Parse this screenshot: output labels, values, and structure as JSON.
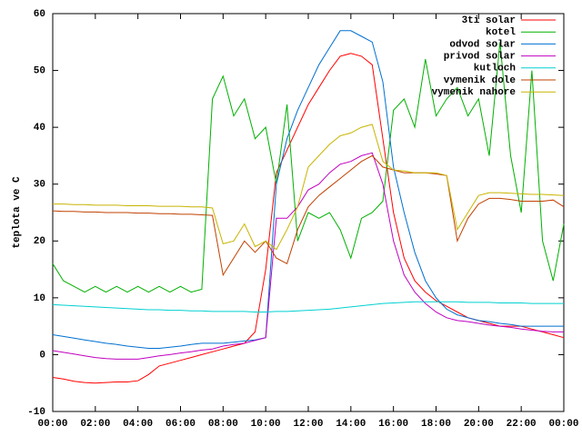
{
  "chart_data": {
    "type": "line",
    "ylabel": "teplota ve C",
    "x": [
      0,
      0.5,
      1,
      1.5,
      2,
      2.5,
      3,
      3.5,
      4,
      4.5,
      5,
      5.5,
      6,
      6.5,
      7,
      7.5,
      8,
      8.5,
      9,
      9.5,
      10,
      10.5,
      11,
      11.5,
      12,
      12.5,
      13,
      13.5,
      14,
      14.5,
      15,
      15.5,
      16,
      16.5,
      17,
      17.5,
      18,
      18.5,
      19,
      19.5,
      20,
      20.5,
      21,
      21.5,
      22,
      22.5,
      23,
      23.5,
      24
    ],
    "xlim": [
      0,
      24
    ],
    "xticks": [
      {
        "value": 0,
        "label": "00:00"
      },
      {
        "value": 2,
        "label": "02:00"
      },
      {
        "value": 4,
        "label": "04:00"
      },
      {
        "value": 6,
        "label": "06:00"
      },
      {
        "value": 8,
        "label": "08:00"
      },
      {
        "value": 10,
        "label": "10:00"
      },
      {
        "value": 12,
        "label": "12:00"
      },
      {
        "value": 14,
        "label": "14:00"
      },
      {
        "value": 16,
        "label": "16:00"
      },
      {
        "value": 18,
        "label": "18:00"
      },
      {
        "value": 20,
        "label": "20:00"
      },
      {
        "value": 22,
        "label": "22:00"
      },
      {
        "value": 24,
        "label": "00:00"
      }
    ],
    "ylim": [
      -10,
      60
    ],
    "yticks": [
      -10,
      0,
      10,
      20,
      30,
      40,
      50,
      60
    ],
    "legend": "top-right",
    "series": [
      {
        "name": "3ti solar",
        "color": "#ff0000",
        "values": [
          -4,
          -4.3,
          -4.7,
          -4.9,
          -5,
          -4.9,
          -4.8,
          -4.8,
          -4.6,
          -3.5,
          -2,
          -1.5,
          -1,
          -0.5,
          0,
          0.5,
          1,
          1.5,
          2,
          4,
          15,
          32,
          36,
          40,
          44,
          47,
          50,
          52.5,
          53,
          52.5,
          51,
          38,
          25,
          17,
          13,
          11,
          9.5,
          8.5,
          7.5,
          6.5,
          6,
          5.5,
          5,
          5,
          5,
          4.5,
          4,
          3.5,
          3
        ]
      },
      {
        "name": "kotel",
        "color": "#00b000",
        "values": [
          16,
          13,
          12,
          11,
          12,
          11,
          12,
          11,
          12,
          11,
          12,
          11,
          12,
          11,
          11.5,
          45,
          49,
          42,
          45,
          38,
          40,
          30,
          44,
          20,
          25,
          24,
          25,
          22,
          17,
          24,
          25,
          27,
          43,
          45,
          40,
          52,
          42,
          45,
          47,
          42,
          45,
          35,
          55,
          35,
          25,
          50,
          20,
          13,
          23
        ]
      },
      {
        "name": "odvod solar",
        "color": "#0070d0",
        "values": [
          3.5,
          3.2,
          2.9,
          2.6,
          2.3,
          2,
          1.8,
          1.5,
          1.3,
          1.1,
          1.1,
          1.3,
          1.5,
          1.8,
          2,
          2,
          2,
          2.2,
          2.4,
          2.6,
          3,
          30,
          38,
          43,
          47,
          51,
          54,
          57,
          57,
          56,
          55,
          48,
          33,
          25,
          18,
          13,
          10,
          8,
          7,
          6.5,
          6,
          5.8,
          5.5,
          5.3,
          5,
          5,
          5,
          5,
          5
        ]
      },
      {
        "name": "privod solar",
        "color": "#c000c0",
        "values": [
          0.7,
          0.4,
          0.1,
          -0.2,
          -0.5,
          -0.7,
          -0.8,
          -0.8,
          -0.8,
          -0.5,
          -0.2,
          0,
          0.3,
          0.5,
          0.8,
          1,
          1.5,
          1.8,
          2,
          2.5,
          3,
          24,
          24,
          26,
          29,
          30,
          32,
          33.5,
          34,
          35,
          35.5,
          30,
          20,
          14,
          11,
          9,
          7.5,
          6.5,
          6,
          5.8,
          5.5,
          5.2,
          5,
          4.8,
          4.5,
          4.3,
          4.1,
          4,
          4
        ]
      },
      {
        "name": "kutloch",
        "color": "#00d0d0",
        "values": [
          8.8,
          8.7,
          8.6,
          8.5,
          8.4,
          8.3,
          8.2,
          8.1,
          8,
          7.9,
          7.9,
          7.8,
          7.8,
          7.7,
          7.7,
          7.6,
          7.6,
          7.6,
          7.6,
          7.5,
          7.5,
          7.6,
          7.6,
          7.7,
          7.8,
          7.9,
          8,
          8.2,
          8.4,
          8.6,
          8.8,
          9,
          9.1,
          9.2,
          9.3,
          9.3,
          9.3,
          9.3,
          9.3,
          9.2,
          9.2,
          9.2,
          9.1,
          9.1,
          9.1,
          9,
          9,
          9,
          9
        ]
      },
      {
        "name": "vymenik dole",
        "color": "#c04000",
        "values": [
          25.3,
          25.2,
          25.2,
          25.1,
          25.1,
          25,
          25,
          25,
          24.9,
          24.9,
          24.8,
          24.8,
          24.7,
          24.7,
          24.6,
          24.5,
          14,
          17,
          20,
          18,
          20,
          17,
          16,
          22,
          26,
          28,
          29.5,
          31,
          32.5,
          34,
          35,
          33,
          32.5,
          32,
          32,
          32,
          31.8,
          31.5,
          20,
          24,
          26.5,
          27.5,
          27.5,
          27.3,
          27,
          27,
          27,
          27.2,
          26
        ]
      },
      {
        "name": "vymenik nahore",
        "color": "#c8b400",
        "values": [
          26.5,
          26.5,
          26.4,
          26.4,
          26.3,
          26.3,
          26.3,
          26.2,
          26.2,
          26.2,
          26.1,
          26.1,
          26.1,
          26,
          26,
          25.8,
          19.5,
          20,
          23,
          19,
          20,
          18.5,
          22,
          26,
          33,
          35,
          37,
          38.5,
          39,
          40,
          40.5,
          34,
          32.5,
          32.3,
          32,
          32,
          32,
          31.5,
          22,
          25,
          28,
          28.5,
          28.5,
          28.4,
          28.3,
          28.2,
          28.2,
          28.1,
          28
        ]
      }
    ]
  }
}
